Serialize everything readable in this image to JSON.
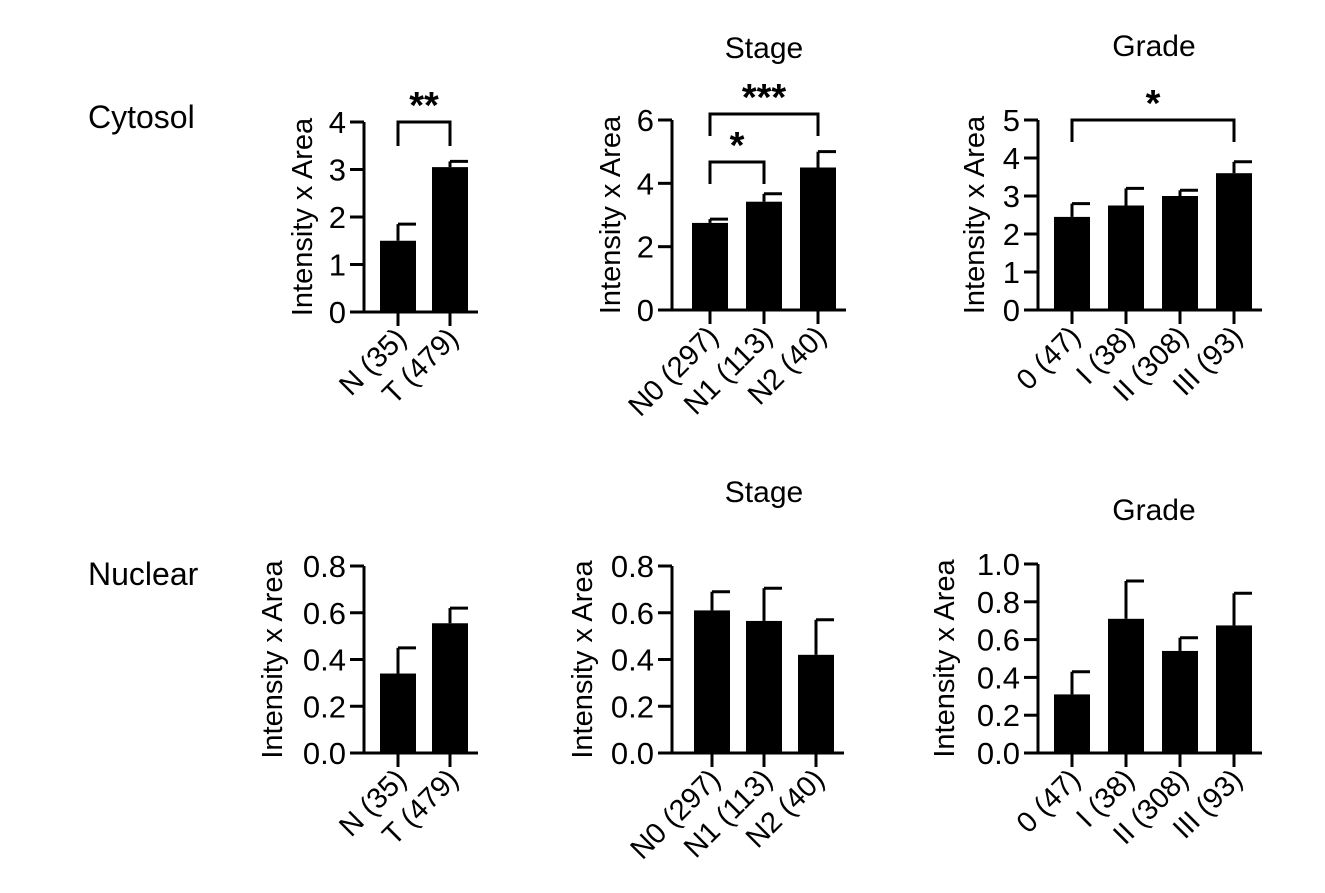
{
  "row_labels": [
    "Cytosol",
    "Nuclear"
  ],
  "chart_data": [
    {
      "type": "bar",
      "row": "Cytosol",
      "title": "",
      "ylabel": "Intensity x Area",
      "categories": [
        "N (35)",
        "T (479)"
      ],
      "values": [
        1.5,
        3.05
      ],
      "errors": [
        0.35,
        0.12
      ],
      "ylim": [
        0,
        4
      ],
      "yticks": [
        0,
        1,
        2,
        3,
        4
      ],
      "tick_labels": [
        "0",
        "1",
        "2",
        "3",
        "4"
      ],
      "significance": [
        {
          "from": 0,
          "to": 1,
          "label": "**"
        }
      ]
    },
    {
      "type": "bar",
      "row": "Cytosol",
      "title": "Stage",
      "ylabel": "Intensity x Area",
      "categories": [
        "N0 (297)",
        "N1 (113)",
        "N2 (40)"
      ],
      "values": [
        2.75,
        3.42,
        4.5
      ],
      "errors": [
        0.12,
        0.25,
        0.5
      ],
      "ylim": [
        0,
        6
      ],
      "yticks": [
        0,
        2,
        4,
        6
      ],
      "tick_labels": [
        "0",
        "2",
        "4",
        "6"
      ],
      "significance": [
        {
          "from": 0,
          "to": 1,
          "label": "*"
        },
        {
          "from": 0,
          "to": 2,
          "label": "***"
        }
      ]
    },
    {
      "type": "bar",
      "row": "Cytosol",
      "title": "Grade",
      "ylabel": "Intensity x Area",
      "categories": [
        "0 (47)",
        "I (38)",
        "II (308)",
        "III (93)"
      ],
      "values": [
        2.45,
        2.75,
        3.0,
        3.6
      ],
      "errors": [
        0.35,
        0.45,
        0.15,
        0.3
      ],
      "ylim": [
        0,
        5
      ],
      "yticks": [
        0,
        1,
        2,
        3,
        4,
        5
      ],
      "tick_labels": [
        "0",
        "1",
        "2",
        "3",
        "4",
        "5"
      ],
      "significance": [
        {
          "from": 0,
          "to": 3,
          "label": "*"
        }
      ]
    },
    {
      "type": "bar",
      "row": "Nuclear",
      "title": "",
      "ylabel": "Intensity x Area",
      "categories": [
        "N (35)",
        "T (479)"
      ],
      "values": [
        0.34,
        0.555
      ],
      "errors": [
        0.11,
        0.065
      ],
      "ylim": [
        0,
        0.8
      ],
      "yticks": [
        0,
        0.2,
        0.4,
        0.6,
        0.8
      ],
      "tick_labels": [
        "0.0",
        "0.2",
        "0.4",
        "0.6",
        "0.8"
      ],
      "significance": []
    },
    {
      "type": "bar",
      "row": "Nuclear",
      "title": "Stage",
      "ylabel": "Intensity x Area",
      "categories": [
        "N0 (297)",
        "N1 (113)",
        "N2 (40)"
      ],
      "values": [
        0.61,
        0.565,
        0.42
      ],
      "errors": [
        0.08,
        0.14,
        0.15
      ],
      "ylim": [
        0,
        0.8
      ],
      "yticks": [
        0,
        0.2,
        0.4,
        0.6,
        0.8
      ],
      "tick_labels": [
        "0.0",
        "0.2",
        "0.4",
        "0.6",
        "0.8"
      ],
      "significance": []
    },
    {
      "type": "bar",
      "row": "Nuclear",
      "title": "Grade",
      "ylabel": "Intensity x Area",
      "categories": [
        "0 (47)",
        "I (38)",
        "II (308)",
        "III (93)"
      ],
      "values": [
        0.31,
        0.71,
        0.54,
        0.675
      ],
      "errors": [
        0.12,
        0.2,
        0.07,
        0.17
      ],
      "ylim": [
        0,
        1.0
      ],
      "yticks": [
        0,
        0.2,
        0.4,
        0.6,
        0.8,
        1.0
      ],
      "tick_labels": [
        "0.0",
        "0.2",
        "0.4",
        "0.6",
        "0.8",
        "1.0"
      ],
      "significance": []
    }
  ]
}
